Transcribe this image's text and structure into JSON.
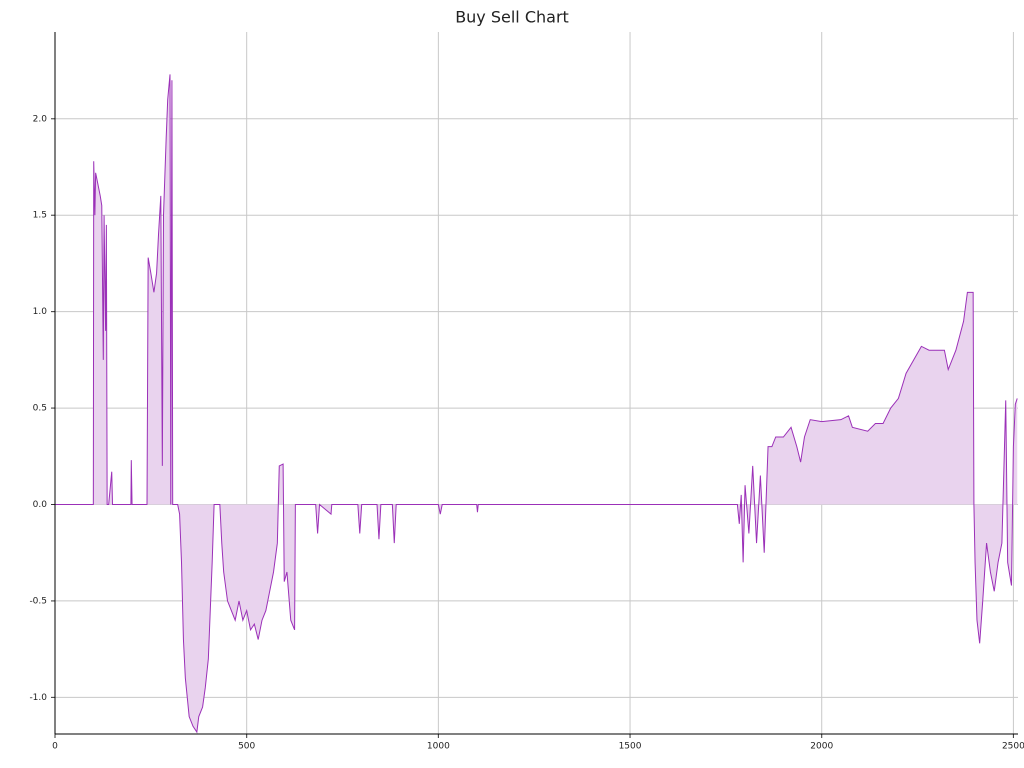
{
  "chart_data": {
    "type": "area",
    "title": "Buy Sell Chart",
    "x": [
      0,
      100,
      101,
      104,
      106,
      110,
      118,
      122,
      126,
      128,
      132,
      134,
      136,
      140,
      148,
      150,
      198,
      199,
      201,
      240,
      243,
      250,
      258,
      265,
      270,
      276,
      280,
      283,
      290,
      294,
      300,
      302,
      305,
      307,
      320,
      325,
      330,
      335,
      340,
      350,
      360,
      370,
      375,
      385,
      392,
      400,
      410,
      415,
      430,
      435,
      440,
      450,
      460,
      470,
      480,
      490,
      500,
      510,
      520,
      530,
      540,
      550,
      560,
      570,
      580,
      585,
      595,
      598,
      605,
      615,
      625,
      627,
      680,
      685,
      690,
      720,
      722,
      790,
      795,
      800,
      840,
      845,
      850,
      880,
      885,
      890,
      1000,
      1005,
      1010,
      1100,
      1102,
      1104,
      1780,
      1785,
      1790,
      1795,
      1800,
      1810,
      1820,
      1830,
      1840,
      1850,
      1860,
      1870,
      1880,
      1900,
      1920,
      1935,
      1945,
      1955,
      1970,
      2000,
      2050,
      2070,
      2080,
      2120,
      2140,
      2160,
      2180,
      2200,
      2220,
      2240,
      2260,
      2280,
      2320,
      2330,
      2350,
      2370,
      2380,
      2395,
      2397,
      2400,
      2405,
      2412,
      2420,
      2430,
      2440,
      2450,
      2460,
      2470,
      2480,
      2485,
      2495,
      2500,
      2505,
      2510
    ],
    "values": [
      0,
      0,
      1.78,
      1.5,
      1.72,
      1.68,
      1.6,
      1.55,
      0.75,
      1.5,
      0.9,
      1.45,
      0,
      0,
      0.17,
      0,
      0,
      0.23,
      0,
      0,
      1.28,
      1.2,
      1.1,
      1.2,
      1.4,
      1.6,
      0.2,
      1.5,
      1.9,
      2.1,
      2.23,
      0,
      2.2,
      0,
      0,
      -0.05,
      -0.3,
      -0.7,
      -0.9,
      -1.1,
      -1.15,
      -1.18,
      -1.1,
      -1.05,
      -0.95,
      -0.8,
      -0.3,
      0,
      0,
      -0.2,
      -0.35,
      -0.5,
      -0.55,
      -0.6,
      -0.5,
      -0.6,
      -0.55,
      -0.65,
      -0.62,
      -0.7,
      -0.6,
      -0.55,
      -0.45,
      -0.35,
      -0.2,
      0.2,
      0.21,
      -0.4,
      -0.35,
      -0.6,
      -0.65,
      0,
      0,
      -0.15,
      0,
      -0.05,
      0,
      0,
      -0.15,
      0,
      0,
      -0.18,
      0,
      0,
      -0.2,
      0,
      0,
      -0.05,
      0,
      0,
      -0.04,
      0,
      0,
      -0.1,
      0.05,
      -0.3,
      0.1,
      -0.15,
      0.2,
      -0.2,
      0.15,
      -0.25,
      0.3,
      0.3,
      0.35,
      0.35,
      0.4,
      0.3,
      0.22,
      0.35,
      0.44,
      0.43,
      0.44,
      0.46,
      0.4,
      0.38,
      0.42,
      0.42,
      0.5,
      0.55,
      0.68,
      0.75,
      0.82,
      0.8,
      0.8,
      0.7,
      0.8,
      0.95,
      1.1,
      1.1,
      0,
      -0.3,
      -0.6,
      -0.72,
      -0.5,
      -0.2,
      -0.35,
      -0.45,
      -0.3,
      -0.2,
      0.54,
      -0.3,
      -0.42,
      0.3,
      0.52,
      0.55
    ],
    "color": "#9b30b8",
    "fill_color": "#e9d3ee",
    "xlim": [
      0,
      2512
    ],
    "xticks": [
      0,
      500,
      1000,
      1500,
      2000,
      2500
    ],
    "ylim": [
      -1.19,
      2.45
    ],
    "yticks": [
      {
        "value": -1,
        "label": "-1.0"
      },
      {
        "value": -0.5,
        "label": "-0.5"
      },
      {
        "value": 0,
        "label": "0.0"
      },
      {
        "value": 0.5,
        "label": "0.5"
      },
      {
        "value": 1,
        "label": "1.0"
      },
      {
        "value": 1.5,
        "label": "1.5"
      },
      {
        "value": 2,
        "label": "2.0"
      }
    ],
    "grid": true
  }
}
